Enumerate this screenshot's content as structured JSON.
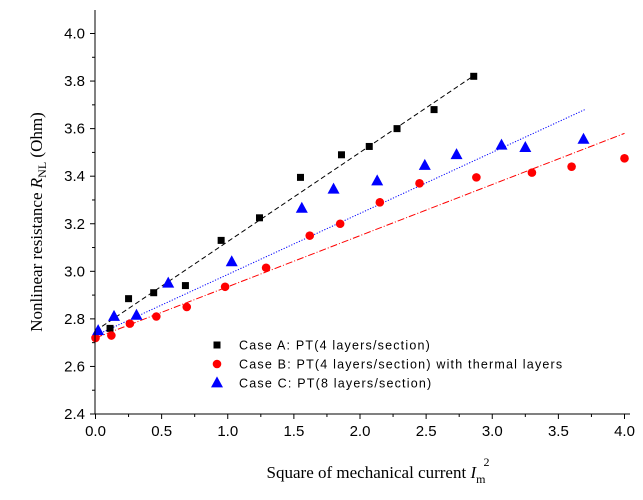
{
  "chart_data": {
    "type": "scatter",
    "xlabel": {
      "main": "Square of mechanical current ",
      "var": "I",
      "sub": "m",
      "sup": "2"
    },
    "ylabel": {
      "main": "Nonlinear resistance ",
      "var": "R",
      "sub": "NL",
      "unit": " (Ohm)"
    },
    "xlim": [
      0,
      4.1
    ],
    "ylim": [
      2.4,
      4.1
    ],
    "xticks": [
      0.0,
      0.5,
      1.0,
      1.5,
      2.0,
      2.5,
      3.0,
      3.5,
      4.0
    ],
    "xtick_labels": [
      "0.0",
      "0.5",
      "1.0",
      "1.5",
      "2.0",
      "2.5",
      "3.0",
      "3.5",
      "4.0"
    ],
    "yticks": [
      2.4,
      2.6,
      2.8,
      3.0,
      3.2,
      3.4,
      3.6,
      3.8,
      4.0
    ],
    "ytick_labels": [
      "2.4",
      "2.6",
      "2.8",
      "3.0",
      "3.2",
      "3.4",
      "3.6",
      "3.8",
      "4.0"
    ],
    "legend_position": "bottom-center",
    "series": [
      {
        "name": "Case A: PT(4 layers/section)",
        "marker": "square",
        "color": "#000000",
        "points": [
          [
            0.11,
            2.76
          ],
          [
            0.25,
            2.885
          ],
          [
            0.44,
            2.91
          ],
          [
            0.68,
            2.94
          ],
          [
            0.95,
            3.13
          ],
          [
            1.24,
            3.225
          ],
          [
            1.55,
            3.395
          ],
          [
            1.86,
            3.49
          ],
          [
            2.07,
            3.525
          ],
          [
            2.28,
            3.6
          ],
          [
            2.56,
            3.68
          ],
          [
            2.86,
            3.82
          ]
        ],
        "fit": {
          "x": [
            0.0,
            2.88
          ],
          "y": [
            2.75,
            3.83
          ],
          "style": "dashed"
        }
      },
      {
        "name": "Case B: PT(4 layers/section) with thermal layers",
        "marker": "circle",
        "color": "#ff0000",
        "points": [
          [
            0.0,
            2.72
          ],
          [
            0.12,
            2.73
          ],
          [
            0.26,
            2.78
          ],
          [
            0.46,
            2.81
          ],
          [
            0.69,
            2.85
          ],
          [
            0.98,
            2.935
          ],
          [
            1.29,
            3.015
          ],
          [
            1.62,
            3.15
          ],
          [
            1.85,
            3.2
          ],
          [
            2.15,
            3.29
          ],
          [
            2.45,
            3.37
          ],
          [
            2.88,
            3.395
          ],
          [
            3.3,
            3.415
          ],
          [
            3.6,
            3.44
          ],
          [
            4.0,
            3.475
          ]
        ],
        "fit": {
          "x": [
            0.0,
            4.0
          ],
          "y": [
            2.72,
            3.58
          ],
          "style": "dashdot"
        }
      },
      {
        "name": "Case C: PT(8 layers/section)",
        "marker": "triangle",
        "color": "#0000ff",
        "points": [
          [
            0.02,
            2.75
          ],
          [
            0.14,
            2.81
          ],
          [
            0.31,
            2.815
          ],
          [
            0.55,
            2.95
          ],
          [
            1.03,
            3.04
          ],
          [
            1.56,
            3.265
          ],
          [
            1.8,
            3.345
          ],
          [
            2.13,
            3.38
          ],
          [
            2.49,
            3.445
          ],
          [
            2.73,
            3.49
          ],
          [
            3.07,
            3.53
          ],
          [
            3.25,
            3.52
          ],
          [
            3.69,
            3.555
          ]
        ],
        "fit": {
          "x": [
            0.0,
            3.7
          ],
          "y": [
            2.73,
            3.68
          ],
          "style": "dotted"
        }
      }
    ]
  }
}
